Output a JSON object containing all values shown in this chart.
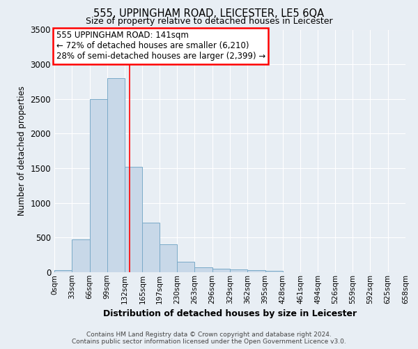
{
  "title": "555, UPPINGHAM ROAD, LEICESTER, LE5 6QA",
  "subtitle": "Size of property relative to detached houses in Leicester",
  "xlabel": "Distribution of detached houses by size in Leicester",
  "ylabel": "Number of detached properties",
  "bar_color": "#c8d8e8",
  "bar_edge_color": "#7aaac8",
  "background_color": "#e8eef4",
  "grid_color": "#ffffff",
  "vline_x": 141,
  "vline_color": "red",
  "annotation_line1": "555 UPPINGHAM ROAD: 141sqm",
  "annotation_line2": "← 72% of detached houses are smaller (6,210)",
  "annotation_line3": "28% of semi-detached houses are larger (2,399) →",
  "bin_edges": [
    0,
    33,
    66,
    99,
    132,
    165,
    197,
    230,
    263,
    296,
    329,
    362,
    395,
    428,
    461,
    494,
    526,
    559,
    592,
    625,
    658
  ],
  "bar_heights": [
    30,
    470,
    2500,
    2800,
    1520,
    720,
    400,
    150,
    70,
    50,
    40,
    30,
    20,
    0,
    0,
    0,
    0,
    0,
    0,
    0
  ],
  "ylim": [
    0,
    3500
  ],
  "yticks": [
    0,
    500,
    1000,
    1500,
    2000,
    2500,
    3000,
    3500
  ],
  "footer_line1": "Contains HM Land Registry data © Crown copyright and database right 2024.",
  "footer_line2": "Contains public sector information licensed under the Open Government Licence v3.0."
}
